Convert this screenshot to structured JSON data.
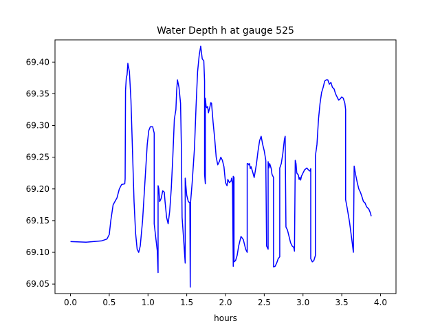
{
  "chart_data": {
    "type": "line",
    "title": "Water Depth h at gauge 525",
    "xlabel": "hours",
    "ylabel": "",
    "xlim": [
      -0.2,
      4.2
    ],
    "ylim": [
      69.035,
      69.435
    ],
    "xticks": [
      0.0,
      0.5,
      1.0,
      1.5,
      2.0,
      2.5,
      3.0,
      3.5,
      4.0
    ],
    "xtick_labels": [
      "0.0",
      "0.5",
      "1.0",
      "1.5",
      "2.0",
      "2.5",
      "3.0",
      "3.5",
      "4.0"
    ],
    "yticks": [
      69.05,
      69.1,
      69.15,
      69.2,
      69.25,
      69.3,
      69.35,
      69.4
    ],
    "ytick_labels": [
      "69.05",
      "69.10",
      "69.15",
      "69.20",
      "69.25",
      "69.30",
      "69.35",
      "69.40"
    ],
    "grid": false,
    "series": [
      {
        "color": "#0000ff",
        "points": [
          [
            0.0,
            69.117
          ],
          [
            0.2,
            69.116
          ],
          [
            0.4,
            69.118
          ],
          [
            0.47,
            69.121
          ],
          [
            0.5,
            69.128
          ],
          [
            0.52,
            69.15
          ],
          [
            0.55,
            69.175
          ],
          [
            0.6,
            69.186
          ],
          [
            0.63,
            69.2
          ],
          [
            0.66,
            69.207
          ],
          [
            0.7,
            69.208
          ],
          [
            0.705,
            69.216
          ],
          [
            0.71,
            69.355
          ],
          [
            0.72,
            69.375
          ],
          [
            0.73,
            69.38
          ],
          [
            0.74,
            69.398
          ],
          [
            0.76,
            69.385
          ],
          [
            0.78,
            69.34
          ],
          [
            0.8,
            69.26
          ],
          [
            0.82,
            69.18
          ],
          [
            0.84,
            69.13
          ],
          [
            0.86,
            69.105
          ],
          [
            0.88,
            69.1
          ],
          [
            0.9,
            69.11
          ],
          [
            0.93,
            69.15
          ],
          [
            0.96,
            69.21
          ],
          [
            0.99,
            69.27
          ],
          [
            1.01,
            69.292
          ],
          [
            1.03,
            69.298
          ],
          [
            1.06,
            69.298
          ],
          [
            1.08,
            69.288
          ],
          [
            1.08,
            69.145
          ],
          [
            1.12,
            69.102
          ],
          [
            1.13,
            69.068
          ],
          [
            1.13,
            69.205
          ],
          [
            1.14,
            69.2
          ],
          [
            1.15,
            69.18
          ],
          [
            1.17,
            69.185
          ],
          [
            1.19,
            69.197
          ],
          [
            1.21,
            69.195
          ],
          [
            1.22,
            69.18
          ],
          [
            1.24,
            69.155
          ],
          [
            1.26,
            69.145
          ],
          [
            1.28,
            69.165
          ],
          [
            1.3,
            69.2
          ],
          [
            1.32,
            69.25
          ],
          [
            1.34,
            69.31
          ],
          [
            1.36,
            69.325
          ],
          [
            1.37,
            69.355
          ],
          [
            1.38,
            69.372
          ],
          [
            1.4,
            69.36
          ],
          [
            1.42,
            69.335
          ],
          [
            1.43,
            69.27
          ],
          [
            1.44,
            69.155
          ],
          [
            1.46,
            69.12
          ],
          [
            1.48,
            69.083
          ],
          [
            1.48,
            69.217
          ],
          [
            1.5,
            69.19
          ],
          [
            1.52,
            69.18
          ],
          [
            1.54,
            69.178
          ],
          [
            1.545,
            69.045
          ],
          [
            1.55,
            69.18
          ],
          [
            1.57,
            69.21
          ],
          [
            1.6,
            69.265
          ],
          [
            1.62,
            69.33
          ],
          [
            1.64,
            69.385
          ],
          [
            1.66,
            69.41
          ],
          [
            1.68,
            69.425
          ],
          [
            1.7,
            69.405
          ],
          [
            1.72,
            69.402
          ],
          [
            1.73,
            69.37
          ],
          [
            1.73,
            69.223
          ],
          [
            1.74,
            69.208
          ],
          [
            1.74,
            69.343
          ],
          [
            1.75,
            69.33
          ],
          [
            1.76,
            69.328
          ],
          [
            1.77,
            69.33
          ],
          [
            1.78,
            69.32
          ],
          [
            1.79,
            69.325
          ],
          [
            1.8,
            69.33
          ],
          [
            1.81,
            69.336
          ],
          [
            1.82,
            69.335
          ],
          [
            1.84,
            69.305
          ],
          [
            1.86,
            69.28
          ],
          [
            1.88,
            69.25
          ],
          [
            1.9,
            69.238
          ],
          [
            1.92,
            69.243
          ],
          [
            1.94,
            69.25
          ],
          [
            1.96,
            69.245
          ],
          [
            1.98,
            69.235
          ],
          [
            2.0,
            69.21
          ],
          [
            2.02,
            69.205
          ],
          [
            2.03,
            69.215
          ],
          [
            2.05,
            69.21
          ],
          [
            2.07,
            69.212
          ],
          [
            2.08,
            69.217
          ],
          [
            2.09,
            69.208
          ],
          [
            2.1,
            69.078
          ],
          [
            2.1,
            69.22
          ],
          [
            2.11,
            69.218
          ],
          [
            2.11,
            69.085
          ],
          [
            2.13,
            69.087
          ],
          [
            2.15,
            69.095
          ],
          [
            2.17,
            69.11
          ],
          [
            2.2,
            69.125
          ],
          [
            2.23,
            69.12
          ],
          [
            2.26,
            69.105
          ],
          [
            2.28,
            69.1
          ],
          [
            2.28,
            69.24
          ],
          [
            2.29,
            69.24
          ],
          [
            2.3,
            69.238
          ],
          [
            2.31,
            69.24
          ],
          [
            2.32,
            69.232
          ],
          [
            2.33,
            69.235
          ],
          [
            2.35,
            69.227
          ],
          [
            2.37,
            69.218
          ],
          [
            2.38,
            69.225
          ],
          [
            2.4,
            69.24
          ],
          [
            2.42,
            69.26
          ],
          [
            2.44,
            69.276
          ],
          [
            2.46,
            69.283
          ],
          [
            2.48,
            69.27
          ],
          [
            2.5,
            69.26
          ],
          [
            2.52,
            69.245
          ],
          [
            2.53,
            69.11
          ],
          [
            2.55,
            69.105
          ],
          [
            2.55,
            69.243
          ],
          [
            2.56,
            69.233
          ],
          [
            2.57,
            69.24
          ],
          [
            2.59,
            69.232
          ],
          [
            2.6,
            69.223
          ],
          [
            2.62,
            69.218
          ],
          [
            2.62,
            69.077
          ],
          [
            2.64,
            69.078
          ],
          [
            2.66,
            69.083
          ],
          [
            2.68,
            69.09
          ],
          [
            2.7,
            69.093
          ],
          [
            2.7,
            69.233
          ],
          [
            2.72,
            69.24
          ],
          [
            2.74,
            69.256
          ],
          [
            2.76,
            69.278
          ],
          [
            2.77,
            69.283
          ],
          [
            2.78,
            69.14
          ],
          [
            2.8,
            69.135
          ],
          [
            2.82,
            69.125
          ],
          [
            2.84,
            69.115
          ],
          [
            2.86,
            69.11
          ],
          [
            2.88,
            69.108
          ],
          [
            2.89,
            69.102
          ],
          [
            2.9,
            69.245
          ],
          [
            2.91,
            69.24
          ],
          [
            2.92,
            69.225
          ],
          [
            2.94,
            69.222
          ],
          [
            2.95,
            69.215
          ],
          [
            2.96,
            69.218
          ],
          [
            2.97,
            69.214
          ],
          [
            2.98,
            69.22
          ],
          [
            3.0,
            69.225
          ],
          [
            3.02,
            69.23
          ],
          [
            3.05,
            69.233
          ],
          [
            3.07,
            69.23
          ],
          [
            3.09,
            69.228
          ],
          [
            3.1,
            69.232
          ],
          [
            3.1,
            69.09
          ],
          [
            3.12,
            69.085
          ],
          [
            3.14,
            69.087
          ],
          [
            3.16,
            69.095
          ],
          [
            3.16,
            69.252
          ],
          [
            3.18,
            69.27
          ],
          [
            3.2,
            69.31
          ],
          [
            3.22,
            69.335
          ],
          [
            3.24,
            69.352
          ],
          [
            3.26,
            69.36
          ],
          [
            3.28,
            69.37
          ],
          [
            3.3,
            69.372
          ],
          [
            3.32,
            69.372
          ],
          [
            3.34,
            69.365
          ],
          [
            3.36,
            69.368
          ],
          [
            3.38,
            69.36
          ],
          [
            3.4,
            69.358
          ],
          [
            3.42,
            69.35
          ],
          [
            3.44,
            69.345
          ],
          [
            3.46,
            69.34
          ],
          [
            3.48,
            69.342
          ],
          [
            3.5,
            69.345
          ],
          [
            3.52,
            69.343
          ],
          [
            3.54,
            69.335
          ],
          [
            3.55,
            69.325
          ],
          [
            3.55,
            69.183
          ],
          [
            3.57,
            69.17
          ],
          [
            3.6,
            69.148
          ],
          [
            3.63,
            69.12
          ],
          [
            3.65,
            69.1
          ],
          [
            3.66,
            69.236
          ],
          [
            3.68,
            69.222
          ],
          [
            3.7,
            69.21
          ],
          [
            3.72,
            69.2
          ],
          [
            3.74,
            69.195
          ],
          [
            3.76,
            69.188
          ],
          [
            3.78,
            69.18
          ],
          [
            3.8,
            69.178
          ],
          [
            3.82,
            69.172
          ],
          [
            3.85,
            69.168
          ],
          [
            3.87,
            69.162
          ],
          [
            3.88,
            69.157
          ]
        ]
      }
    ]
  }
}
